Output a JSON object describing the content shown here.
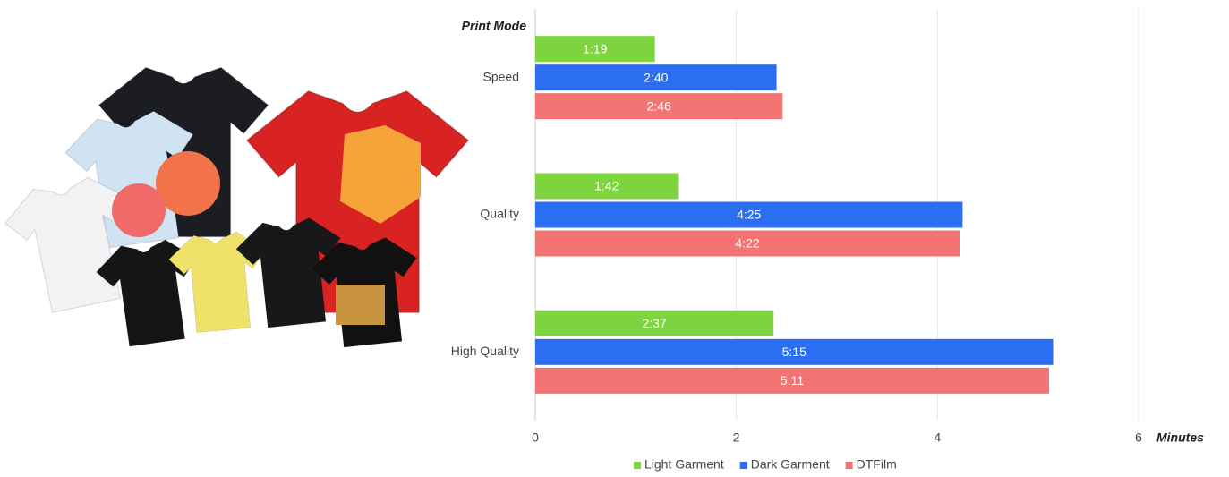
{
  "chart_data": {
    "type": "bar",
    "orientation": "horizontal",
    "y_label": "Print Mode",
    "x_label": "Minutes",
    "categories": [
      "Speed",
      "Quality",
      "High Quality"
    ],
    "series": [
      {
        "name": "Light Garment",
        "color": "#7ed43f",
        "values": [
          1.19,
          1.42,
          2.37
        ],
        "value_labels": [
          "1:19",
          "1:42",
          "2:37"
        ]
      },
      {
        "name": "Dark Garment",
        "color": "#2c6ef2",
        "values": [
          2.4,
          4.25,
          5.15
        ],
        "value_labels": [
          "2:40",
          "4:25",
          "5:15"
        ]
      },
      {
        "name": "DTFilm",
        "color": "#f47373",
        "values": [
          2.46,
          4.22,
          5.11
        ],
        "value_labels": [
          "2:46",
          "4:22",
          "5:11"
        ]
      }
    ],
    "xlim": [
      0,
      6
    ],
    "xticks": [
      0,
      2,
      4,
      6
    ],
    "grid": true,
    "legend": "bottom"
  }
}
